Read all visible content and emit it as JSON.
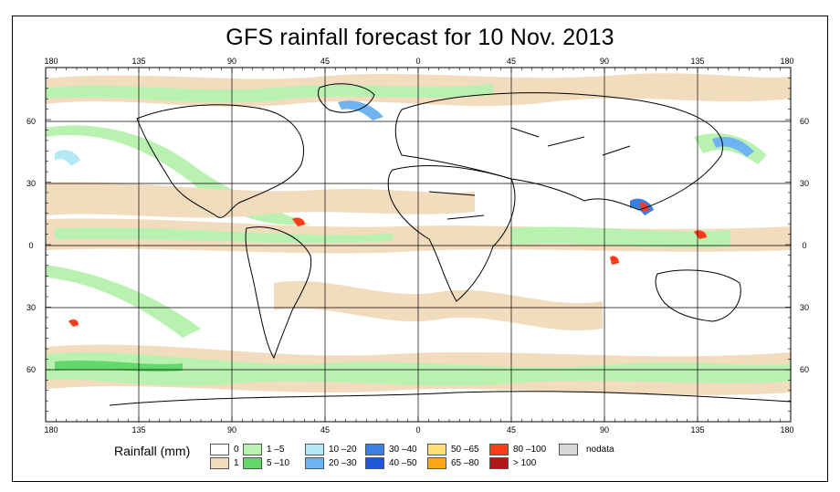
{
  "title": "GFS rainfall forecast for 10 Nov. 2013",
  "longitude_labels": [
    "180",
    "135",
    "90",
    "45",
    "0",
    "45",
    "90",
    "135",
    "180"
  ],
  "latitude_labels": [
    "60",
    "30",
    "0",
    "30",
    "60"
  ],
  "legend": {
    "title": "Rainfall (mm)",
    "items": [
      {
        "label": "0",
        "color": "#ffffff"
      },
      {
        "label": "1",
        "color": "#f2dcbe"
      },
      {
        "label": "1 –5",
        "color": "#b9f2b0"
      },
      {
        "label": "5 –10",
        "color": "#63d96b"
      },
      {
        "label": "10 –20",
        "color": "#b4e9f5"
      },
      {
        "label": "20 –30",
        "color": "#6fb4f2"
      },
      {
        "label": "30 –40",
        "color": "#3b7fe0"
      },
      {
        "label": "40 –50",
        "color": "#1f57d6"
      },
      {
        "label": "50 –65",
        "color": "#ffde78"
      },
      {
        "label": "65 –80",
        "color": "#ffa51a"
      },
      {
        "label": "80 –100",
        "color": "#ff3b1a"
      },
      {
        "label": "> 100",
        "color": "#b01818"
      },
      {
        "label": "nodata",
        "color": "#d8d8d8"
      }
    ]
  }
}
